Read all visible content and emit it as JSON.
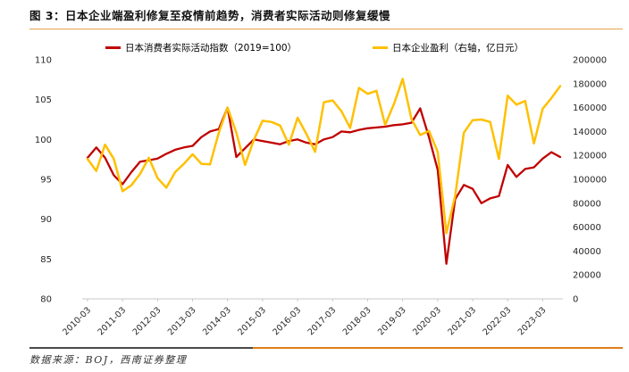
{
  "figure": {
    "title": "图 3：日本企业端盈利修复至疫情前趋势，消费者实际活动则修复缓慢",
    "source_note": "数据来源：BOJ，西南证券整理"
  },
  "chart_data": {
    "type": "line",
    "title": "",
    "grid": "off",
    "legend_position": "top",
    "x": [
      "2010-03",
      "2010-06",
      "2010-09",
      "2010-12",
      "2011-03",
      "2011-06",
      "2011-09",
      "2011-12",
      "2012-03",
      "2012-06",
      "2012-09",
      "2012-12",
      "2013-03",
      "2013-06",
      "2013-09",
      "2013-12",
      "2014-03",
      "2014-06",
      "2014-09",
      "2014-12",
      "2015-03",
      "2015-06",
      "2015-09",
      "2015-12",
      "2016-03",
      "2016-06",
      "2016-09",
      "2016-12",
      "2017-03",
      "2017-06",
      "2017-09",
      "2017-12",
      "2018-03",
      "2018-06",
      "2018-09",
      "2018-12",
      "2019-03",
      "2019-06",
      "2019-09",
      "2019-12",
      "2020-03",
      "2020-06",
      "2020-09",
      "2020-12",
      "2021-03",
      "2021-06",
      "2021-09",
      "2021-12",
      "2022-03",
      "2022-06",
      "2022-09",
      "2022-12",
      "2023-03",
      "2023-06",
      "2023-09"
    ],
    "x_tick_labels": [
      "2010-03",
      "2011-03",
      "2012-03",
      "2013-03",
      "2014-03",
      "2015-03",
      "2016-03",
      "2017-03",
      "2018-03",
      "2019-03",
      "2020-03",
      "2021-03",
      "2022-03",
      "2023-03"
    ],
    "series": [
      {
        "name": "日本消费者实际活动指数（2019=100）",
        "axis": "left",
        "color": "#C00000",
        "values": [
          97.7,
          99.0,
          97.7,
          95.5,
          94.4,
          95.9,
          97.2,
          97.4,
          97.6,
          98.2,
          98.7,
          99.0,
          99.2,
          100.3,
          101.0,
          101.3,
          104.0,
          97.8,
          98.9,
          100.0,
          99.8,
          99.6,
          99.4,
          99.8,
          100.0,
          99.6,
          99.4,
          100.0,
          100.3,
          101.0,
          100.9,
          101.2,
          101.4,
          101.5,
          101.6,
          101.8,
          101.9,
          102.1,
          103.9,
          100.3,
          96.2,
          84.4,
          92.5,
          94.3,
          93.8,
          92.0,
          92.6,
          92.9,
          96.8,
          95.3,
          96.3,
          96.5,
          97.6,
          98.4,
          97.8
        ]
      },
      {
        "name": "日本企业盈利（右轴，亿日元）",
        "axis": "right",
        "color": "#FFC000",
        "values": [
          117000,
          107000,
          129000,
          117000,
          90000,
          95000,
          104500,
          118000,
          101000,
          93000,
          106000,
          113000,
          121000,
          113000,
          112500,
          139000,
          160000,
          139000,
          112000,
          133000,
          149000,
          148000,
          145000,
          129000,
          151500,
          138000,
          123000,
          164500,
          166000,
          157000,
          143000,
          176500,
          171500,
          174000,
          145500,
          163000,
          184000,
          150500,
          137000,
          140500,
          123000,
          55000,
          86000,
          139000,
          149500,
          150000,
          148000,
          117000,
          170000,
          162500,
          165500,
          130000,
          159000,
          168000,
          178000
        ]
      }
    ],
    "left_axis": {
      "min": 80,
      "max": 110,
      "step": 5,
      "ticks": [
        110,
        105,
        100,
        95,
        90,
        85,
        80
      ]
    },
    "right_axis": {
      "min": 0,
      "max": 200000,
      "step": 20000,
      "ticks": [
        200000,
        180000,
        160000,
        140000,
        120000,
        100000,
        80000,
        60000,
        40000,
        20000,
        0
      ]
    }
  },
  "colors": {
    "red_line": "#C00000",
    "yellow_line": "#FFC000",
    "title_rule": "#E8A34C",
    "footer_rule_left": "#4A4A4A",
    "footer_rule_right": "#DF7F1B",
    "axis_line": "#C9C9C9",
    "tick_text": "#262626"
  }
}
